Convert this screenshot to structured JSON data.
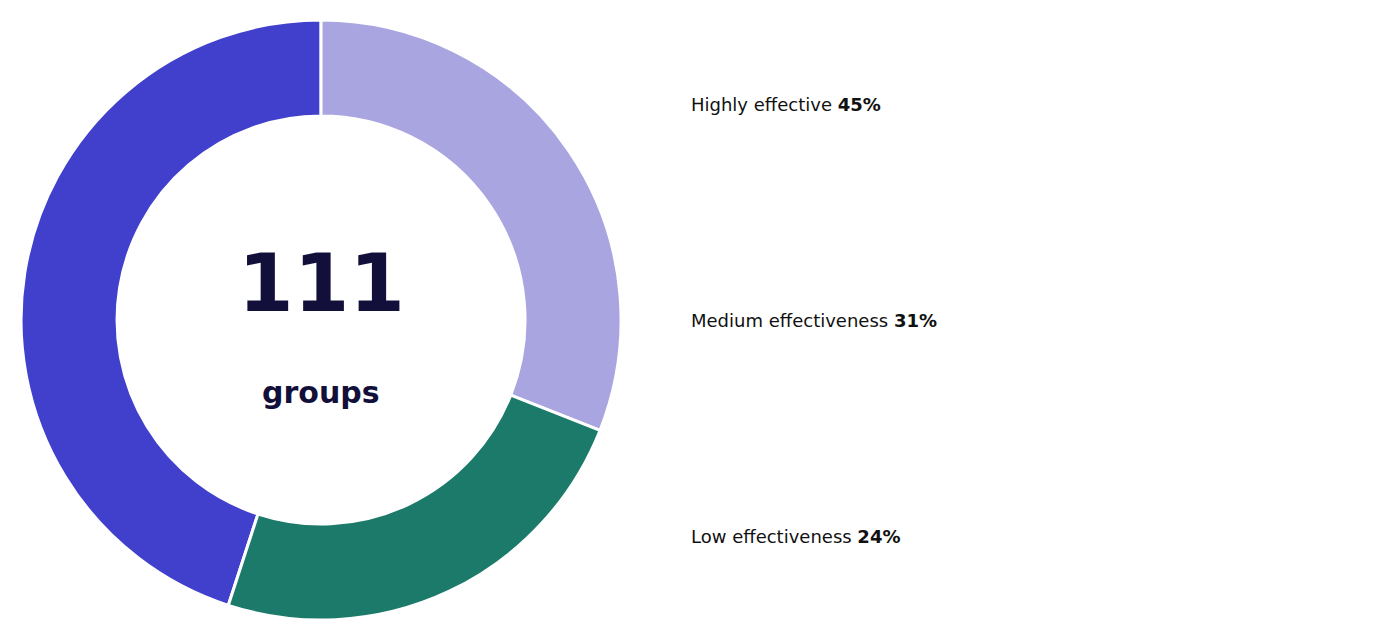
{
  "chart_data": {
    "type": "donut",
    "categories": [
      "Highly effective",
      "Medium effectiveness",
      "Low effectiveness"
    ],
    "values": [
      45,
      31,
      24
    ],
    "value_labels": [
      "45%",
      "31%",
      "24%"
    ],
    "colors": [
      "#4040CC",
      "#A8A5E0",
      "#1B7A6A"
    ],
    "data_labels": true,
    "annotations": [
      "111",
      "groups"
    ]
  }
}
